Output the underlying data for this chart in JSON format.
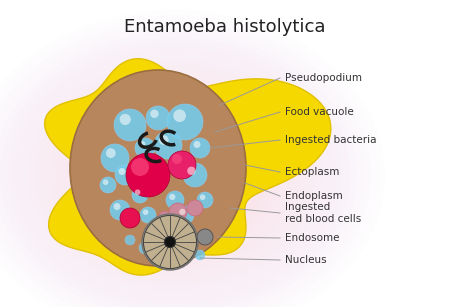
{
  "title": "Entamoeba histolytica",
  "bg_color": "#ffffff",
  "pink_glow_color": "#f9c8d8",
  "pseudopod_color": "#f5d800",
  "pseudopod_outline": "#e0c000",
  "cytoplasm_color": "#b8865c",
  "cytoplasm_outline": "#9a6e40",
  "food_vacuole_color": "#72ccee",
  "food_vacuole_highlight": "#b8e8f8",
  "bacteria_color": "#1a1a1a",
  "rbc_large_color": "#e0004a",
  "rbc_large_highlight": "#ff5588",
  "rbc_small_color": "#ee3366",
  "rbc_pinkish_color": "#cc8899",
  "nucleus_fill": "#999999",
  "nucleus_outer": "#707070",
  "nucleus_spoke": "#444444",
  "nucleus_center": "#111111",
  "endosome_fill": "#888888",
  "line_color": "#999999",
  "label_color": "#333333",
  "title_fontsize": 13,
  "label_fontsize": 7.5,
  "labels": [
    "Pseudopodium",
    "Food vacuole",
    "Ingested bacteria",
    "Ectoplasm",
    "Endoplasm",
    "Ingested\nred blood cells",
    "Endosome",
    "Nucleus"
  ]
}
